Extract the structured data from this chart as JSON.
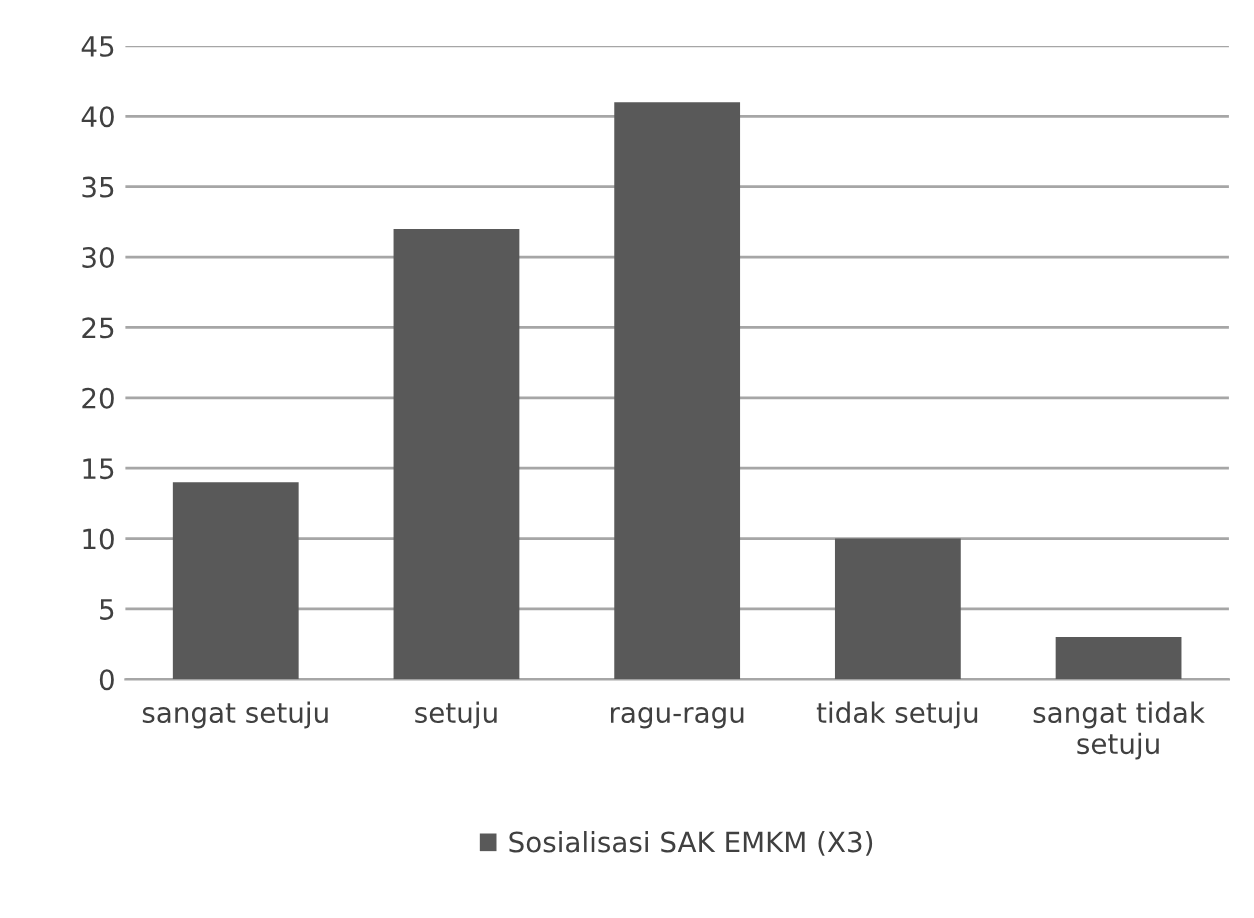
{
  "chart_data": {
    "type": "bar",
    "categories": [
      "sangat setuju",
      "setuju",
      "ragu-ragu",
      "tidak setuju",
      "sangat tidak setuju"
    ],
    "series": [
      {
        "name": "Sosialisasi SAK EMKM (X3)",
        "color": "#595959",
        "values": [
          14,
          32,
          41,
          10,
          3
        ]
      }
    ],
    "ylim": [
      0,
      45
    ],
    "yticks": [
      0,
      5,
      10,
      15,
      20,
      25,
      30,
      35,
      40,
      45
    ],
    "grid": "y",
    "legend": "bottom"
  }
}
